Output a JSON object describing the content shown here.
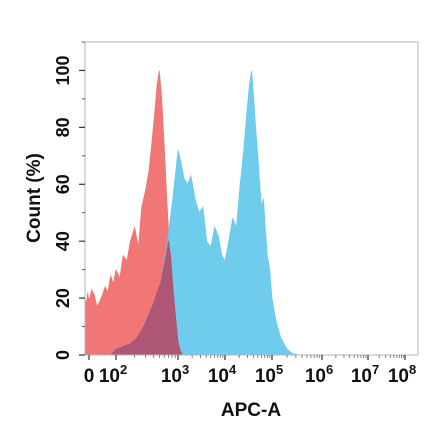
{
  "chart_data": {
    "type": "area",
    "xlabel": "APC-A",
    "ylabel": "Count  (%)",
    "xscale": "biexponential",
    "xlim": [
      -30,
      100000000
    ],
    "ylim": [
      0,
      110
    ],
    "x_ticks": [
      {
        "value": 0,
        "base": "0",
        "exp": ""
      },
      {
        "value": 100,
        "base": "10",
        "exp": "2"
      },
      {
        "value": 1000,
        "base": "10",
        "exp": "3"
      },
      {
        "value": 10000,
        "base": "10",
        "exp": "4"
      },
      {
        "value": 100000,
        "base": "10",
        "exp": "5"
      },
      {
        "value": 1000000,
        "base": "10",
        "exp": "6"
      },
      {
        "value": 10000000,
        "base": "10",
        "exp": "7"
      },
      {
        "value": 100000000,
        "base": "10",
        "exp": "8"
      }
    ],
    "y_ticks": [
      0,
      20,
      40,
      60,
      80,
      100
    ],
    "grid": false,
    "legend": "none",
    "series": [
      {
        "color": "#f07070",
        "x": [
          -30,
          -20,
          -10,
          0,
          10,
          20,
          30,
          45,
          60,
          70,
          80,
          90,
          100,
          115,
          130,
          150,
          170,
          200,
          230,
          260,
          300,
          340,
          380,
          420,
          460,
          500,
          540,
          580,
          620,
          660,
          700,
          760,
          820,
          900,
          1000,
          1100,
          1250,
          1400
        ],
        "y": [
          20,
          18,
          22,
          19,
          23,
          21,
          17,
          20,
          24,
          22,
          28,
          25,
          30,
          27,
          35,
          33,
          40,
          45,
          38,
          52,
          58,
          65,
          75,
          85,
          95,
          100,
          92,
          80,
          68,
          55,
          45,
          35,
          25,
          15,
          5,
          2,
          0,
          0
        ]
      },
      {
        "color": "#64c8ec",
        "x": [
          60,
          80,
          100,
          130,
          170,
          220,
          280,
          350,
          430,
          520,
          620,
          720,
          820,
          920,
          1000,
          1150,
          1350,
          1600,
          1900,
          2300,
          2800,
          3400,
          4100,
          5000,
          6000,
          7200,
          8600,
          10000,
          12000,
          14500,
          17500,
          21000,
          25000,
          29000,
          33000,
          37000,
          41000,
          45000,
          50000,
          55000,
          60000,
          66000,
          72000,
          80000,
          90000,
          100000,
          120000,
          150000,
          200000,
          260000,
          350000
        ],
        "y": [
          0,
          0,
          2,
          3,
          4,
          6,
          10,
          15,
          20,
          25,
          35,
          45,
          55,
          65,
          72,
          68,
          62,
          60,
          63,
          55,
          50,
          52,
          40,
          38,
          45,
          42,
          35,
          33,
          40,
          48,
          45,
          60,
          72,
          85,
          95,
          100,
          90,
          80,
          70,
          60,
          52,
          55,
          45,
          35,
          30,
          20,
          12,
          6,
          2,
          0.5,
          0
        ]
      },
      {
        "color": "#b05070",
        "x": [
          60,
          80,
          100,
          130,
          170,
          220,
          280,
          350,
          400,
          460,
          520,
          580,
          640,
          700,
          760,
          820,
          900,
          1000,
          1100,
          1250
        ],
        "y": [
          0,
          0,
          2,
          3,
          4,
          6,
          10,
          15,
          18,
          22,
          25,
          30,
          35,
          40,
          35,
          25,
          15,
          5,
          2,
          0
        ]
      }
    ]
  }
}
